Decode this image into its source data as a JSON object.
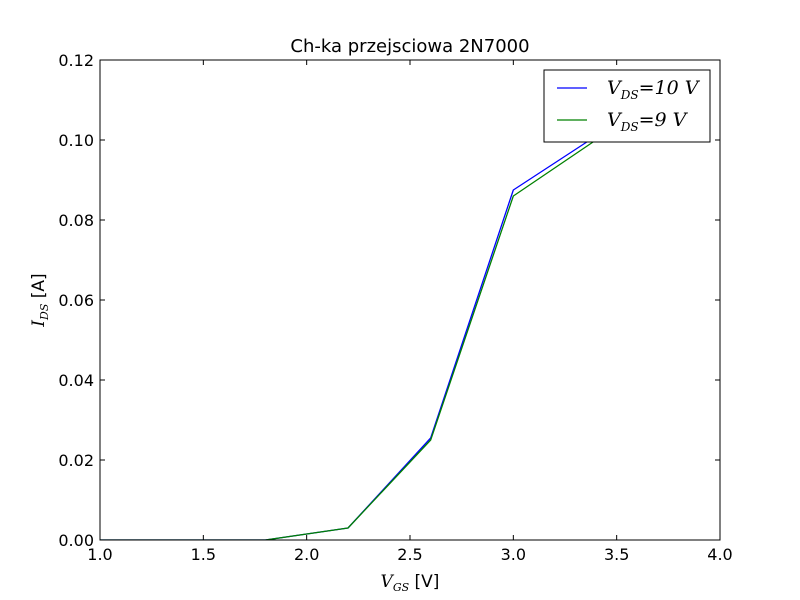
{
  "chart_data": {
    "type": "line",
    "title": "Ch-ka przejsciowa 2N7000",
    "xlabel": {
      "symbol": "V",
      "sub": "GS",
      "unit": " [V]"
    },
    "ylabel": {
      "symbol": "I",
      "sub": "DS",
      "unit": " [A]"
    },
    "xlim": [
      1.0,
      4.0
    ],
    "ylim": [
      0.0,
      0.12
    ],
    "xticks": [
      1.0,
      1.5,
      2.0,
      2.5,
      3.0,
      3.5,
      4.0
    ],
    "yticks": [
      0.0,
      0.02,
      0.04,
      0.06,
      0.08,
      0.1,
      0.12
    ],
    "xtick_labels": [
      "1.0",
      "1.5",
      "2.0",
      "2.5",
      "3.0",
      "3.5",
      "4.0"
    ],
    "ytick_labels": [
      "0.00",
      "0.02",
      "0.04",
      "0.06",
      "0.08",
      "0.10",
      "0.12"
    ],
    "grid": false,
    "legend_position": "top-right",
    "series": [
      {
        "name": "V_DS=10 V",
        "legend": {
          "symbol": "V",
          "sub": "DS",
          "rest": "=10 V"
        },
        "color": "#0000ff",
        "x": [
          1.0,
          1.8,
          2.2,
          2.6,
          3.0,
          3.4,
          3.8
        ],
        "y": [
          0.0,
          0.0,
          0.003,
          0.0255,
          0.0875,
          0.101,
          0.108
        ]
      },
      {
        "name": "V_DS=9 V",
        "legend": {
          "symbol": "V",
          "sub": "DS",
          "rest": "=9 V"
        },
        "color": "#008000",
        "x": [
          1.0,
          1.8,
          2.2,
          2.6,
          3.0,
          3.4,
          3.8
        ],
        "y": [
          0.0,
          0.0,
          0.003,
          0.025,
          0.086,
          0.1,
          0.107
        ]
      }
    ]
  }
}
